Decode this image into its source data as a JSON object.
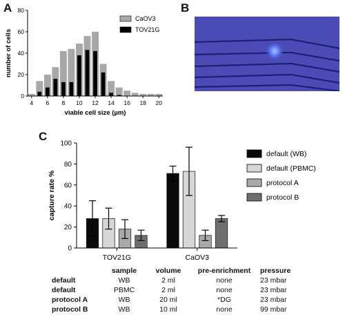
{
  "panels": {
    "a": "A",
    "b": "B",
    "c": "C"
  },
  "chart_data": [
    {
      "type": "bar",
      "panel": "A",
      "xlabel": "viable cell size (µm)",
      "ylabel": "number of cells",
      "ylim": [
        0,
        80
      ],
      "yticks": [
        0,
        20,
        40,
        60,
        80
      ],
      "xticks": [
        "4",
        "6",
        "8",
        "10",
        "12",
        "14",
        "16",
        "18",
        "20"
      ],
      "categories": [
        "4",
        "5",
        "6",
        "7",
        "8",
        "9",
        "10",
        "11",
        "12",
        "13",
        "14",
        "15",
        "16",
        "17",
        "18",
        "19",
        "20"
      ],
      "legend_position": "top-right",
      "series": [
        {
          "name": "CaOV3",
          "color": "#a8a8a8",
          "values": [
            2,
            14,
            20,
            27,
            42,
            44,
            49,
            56,
            60,
            30,
            14,
            8,
            5,
            3,
            2,
            2,
            2
          ]
        },
        {
          "name": "TOV21G",
          "color": "#000000",
          "values": [
            0,
            4,
            8,
            16,
            13,
            13,
            38,
            43,
            42,
            22,
            3,
            1,
            0,
            0,
            0,
            0,
            0
          ]
        }
      ]
    },
    {
      "type": "bar",
      "panel": "C",
      "xlabel": "",
      "ylabel": "capture rate %",
      "ylim": [
        0,
        100
      ],
      "yticks": [
        0,
        20,
        40,
        60,
        80,
        100
      ],
      "categories": [
        "TOV21G",
        "CaOV3"
      ],
      "legend_position": "right",
      "series": [
        {
          "name": "default (WB)",
          "color": "#0a0a0a",
          "values": [
            28,
            71
          ],
          "err": [
            17,
            7
          ]
        },
        {
          "name": "default (PBMC)",
          "color": "#d7d7d7",
          "values": [
            28,
            73
          ],
          "err": [
            10,
            23
          ]
        },
        {
          "name": "protocol A",
          "color": "#a9a9a9",
          "values": [
            18,
            12
          ],
          "err": [
            9,
            5
          ]
        },
        {
          "name": "protocol B",
          "color": "#6f6f6f",
          "values": [
            12,
            28
          ],
          "err": [
            5,
            3
          ]
        }
      ]
    }
  ],
  "table": {
    "headers": [
      "",
      "sample",
      "volume",
      "pre-enrichment",
      "pressure"
    ],
    "rows": [
      [
        "default",
        "WB",
        "2 ml",
        "none",
        "23 mbar"
      ],
      [
        "default",
        "PBMC",
        "2 ml",
        "none",
        "23 mbar"
      ],
      [
        "protocol A",
        "WB",
        "20 ml",
        "*DG",
        "23 mbar"
      ],
      [
        "protocol B",
        "WB",
        "10 ml",
        "none",
        "99 mbar"
      ]
    ]
  },
  "colors": {
    "micro_bg": "#4a4ab8",
    "micro_line": "#1c1e72",
    "micro_cell": "#7a9cff"
  }
}
